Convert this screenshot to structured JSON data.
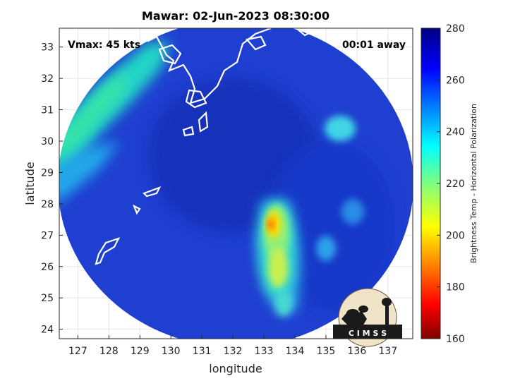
{
  "figure": {
    "title": "Mawar: 02-Jun-2023 08:30:00",
    "annotation_left": "Vmax: 45 kts",
    "annotation_right": "00:01 away",
    "xlabel": "longitude",
    "ylabel": "latitude",
    "x_ticks": [
      "127",
      "128",
      "129",
      "130",
      "131",
      "132",
      "133",
      "134",
      "135",
      "136",
      "137"
    ],
    "y_ticks": [
      "33",
      "32",
      "31",
      "30",
      "29",
      "28",
      "27",
      "26",
      "25",
      "24"
    ],
    "colorbar_label": "Brightness Temp - Horizontal Polarization",
    "colorbar_ticks": [
      "280",
      "260",
      "240",
      "220",
      "200",
      "180",
      "160"
    ],
    "logo_text": "C I M S S"
  },
  "map_data": {
    "xlim": [
      126.4,
      137.8
    ],
    "ylim": [
      23.7,
      33.6
    ],
    "swath_center": [
      131.7,
      28.6
    ],
    "background_color": "#1f3fd0",
    "coastline_color": "#ffffff",
    "features": {
      "warm_band_northwest": "cyan-green",
      "storm_rainband": [
        133.3,
        26.8
      ],
      "rainband_core": "yellow-red",
      "cloud_patch_east": [
        135.5,
        30.2
      ]
    }
  },
  "colorbar": {
    "range": [
      160,
      280
    ],
    "colormap": "jet",
    "colors": [
      "#7f0000",
      "#ff0000",
      "#ff7f00",
      "#ffff00",
      "#7fff7f",
      "#00ffff",
      "#007fff",
      "#0000ff",
      "#00007f"
    ]
  }
}
